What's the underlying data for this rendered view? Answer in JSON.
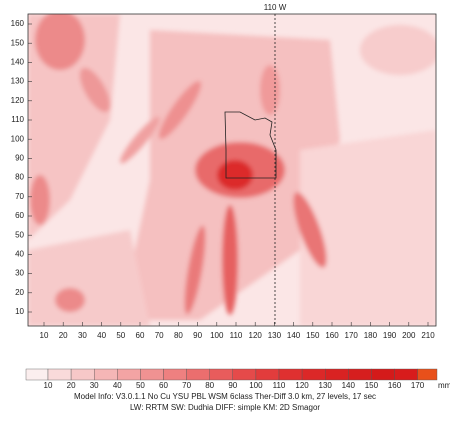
{
  "map": {
    "meridian_label": "110 W",
    "x_ticks": [
      10,
      20,
      30,
      40,
      50,
      60,
      70,
      80,
      90,
      100,
      110,
      120,
      130,
      140,
      150,
      160,
      170,
      180,
      190,
      200,
      210
    ],
    "y_ticks": [
      10,
      20,
      30,
      40,
      50,
      60,
      70,
      80,
      90,
      100,
      110,
      120,
      130,
      140,
      150,
      160
    ],
    "colorbar": {
      "levels": [
        10,
        20,
        30,
        40,
        50,
        60,
        70,
        80,
        90,
        100,
        110,
        120,
        130,
        140,
        150,
        160,
        170
      ],
      "colors": [
        "#fbeeee",
        "#f9dada",
        "#f7c8c8",
        "#f5b6b6",
        "#f3a4a4",
        "#f09292",
        "#ee8080",
        "#eb6e6e",
        "#e85c5c",
        "#e54a4a",
        "#e23c3c",
        "#df3030",
        "#dc2828",
        "#d92222",
        "#d61e1e",
        "#d41a1a",
        "#d81c1c",
        "#e8501a"
      ],
      "unit": "mm"
    },
    "info_lines": [
      "Model Info:  V3.0.1.1   No Cu    YSU   PBL   WSM   6class   Ther-Diff   3.0  km,   27  levels,    17  sec",
      "LW:   RRTM    SW:   Dudhia    DIFF:   simple    KM:   2D   Smagor"
    ]
  }
}
